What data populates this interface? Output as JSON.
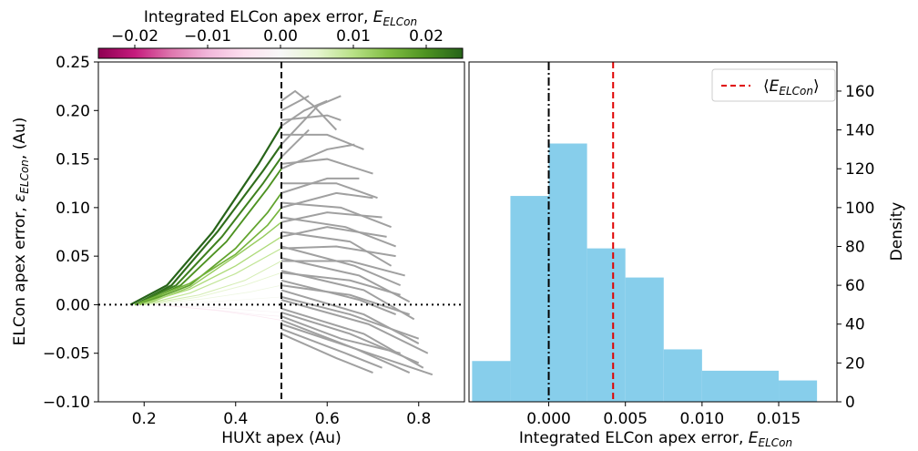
{
  "colorbar": {
    "label_main": "Integrated ELCon apex error, ",
    "label_symbol": "E",
    "label_sub": "ELCon",
    "min": -0.025,
    "max": 0.025,
    "ticks": [
      "−0.02",
      "−0.01",
      "0.00",
      "0.01",
      "0.02"
    ],
    "tick_values": [
      -0.02,
      -0.01,
      0.0,
      0.01,
      0.02
    ],
    "colormap": "PiYG",
    "stops": [
      "#8e0152",
      "#c51b7d",
      "#de77ae",
      "#f1b6da",
      "#fde0ef",
      "#f7f7f7",
      "#e6f5d0",
      "#b8e186",
      "#7fbc41",
      "#4d9221",
      "#276419"
    ]
  },
  "chart_data": [
    {
      "type": "line",
      "panel": "left",
      "xlabel": "HUXt apex (Au)",
      "ylabel_main": "ELCon apex error, ",
      "ylabel_symbol": "ε",
      "ylabel_sub": "ELCon",
      "ylabel_tail": ", (Au)",
      "xlim": [
        0.1,
        0.9
      ],
      "ylim": [
        -0.1,
        0.25
      ],
      "xticks": [
        0.2,
        0.4,
        0.6,
        0.8
      ],
      "xtick_labels": [
        "0.2",
        "0.4",
        "0.6",
        "0.8"
      ],
      "yticks": [
        -0.1,
        -0.05,
        0.0,
        0.05,
        0.1,
        0.15,
        0.2,
        0.25
      ],
      "ytick_labels": [
        "−0.10",
        "−0.05",
        "0.00",
        "0.05",
        "0.10",
        "0.15",
        "0.20",
        "0.25"
      ],
      "reference_lines": [
        {
          "orientation": "vertical",
          "x": 0.5,
          "style": "dashed",
          "color": "#000000"
        },
        {
          "orientation": "horizontal",
          "y": 0.0,
          "style": "dotted",
          "color": "#000000"
        }
      ],
      "integrated_segment_xrange": [
        0.15,
        0.5
      ],
      "after_apex_color": "#a0a0a0",
      "series": [
        {
          "integrated_error": 0.025,
          "values": [
            [
              0.17,
              0.0
            ],
            [
              0.25,
              0.02
            ],
            [
              0.35,
              0.075
            ],
            [
              0.45,
              0.145
            ],
            [
              0.5,
              0.184
            ],
            [
              0.55,
              0.2
            ],
            [
              0.6,
              0.21
            ]
          ]
        },
        {
          "integrated_error": 0.024,
          "values": [
            [
              0.18,
              0.0
            ],
            [
              0.26,
              0.02
            ],
            [
              0.36,
              0.075
            ],
            [
              0.46,
              0.138
            ],
            [
              0.5,
              0.165
            ],
            [
              0.58,
              0.205
            ],
            [
              0.63,
              0.215
            ]
          ]
        },
        {
          "integrated_error": 0.022,
          "values": [
            [
              0.18,
              0.0
            ],
            [
              0.27,
              0.02
            ],
            [
              0.37,
              0.07
            ],
            [
              0.46,
              0.125
            ],
            [
              0.5,
              0.152
            ],
            [
              0.56,
              0.18
            ]
          ]
        },
        {
          "integrated_error": 0.02,
          "values": [
            [
              0.19,
              0.0
            ],
            [
              0.28,
              0.02
            ],
            [
              0.38,
              0.065
            ],
            [
              0.47,
              0.12
            ],
            [
              0.5,
              0.14
            ],
            [
              0.6,
              0.16
            ],
            [
              0.66,
              0.165
            ]
          ]
        },
        {
          "integrated_error": 0.018,
          "values": [
            [
              0.19,
              0.0
            ],
            [
              0.3,
              0.02
            ],
            [
              0.4,
              0.058
            ],
            [
              0.47,
              0.095
            ],
            [
              0.5,
              0.115
            ],
            [
              0.6,
              0.13
            ],
            [
              0.67,
              0.13
            ]
          ]
        },
        {
          "integrated_error": 0.016,
          "values": [
            [
              0.18,
              0.0
            ],
            [
              0.3,
              0.022
            ],
            [
              0.4,
              0.052
            ],
            [
              0.47,
              0.082
            ],
            [
              0.5,
              0.1
            ],
            [
              0.62,
              0.115
            ],
            [
              0.7,
              0.11
            ]
          ]
        },
        {
          "integrated_error": 0.013,
          "values": [
            [
              0.2,
              0.0
            ],
            [
              0.3,
              0.018
            ],
            [
              0.4,
              0.05
            ],
            [
              0.46,
              0.07
            ],
            [
              0.5,
              0.085
            ],
            [
              0.6,
              0.095
            ],
            [
              0.72,
              0.09
            ]
          ]
        },
        {
          "integrated_error": 0.011,
          "values": [
            [
              0.19,
              0.0
            ],
            [
              0.3,
              0.016
            ],
            [
              0.4,
              0.04
            ],
            [
              0.5,
              0.07
            ],
            [
              0.6,
              0.08
            ],
            [
              0.73,
              0.07
            ]
          ]
        },
        {
          "integrated_error": 0.009,
          "values": [
            [
              0.2,
              0.0
            ],
            [
              0.3,
              0.012
            ],
            [
              0.4,
              0.032
            ],
            [
              0.5,
              0.058
            ],
            [
              0.62,
              0.06
            ],
            [
              0.75,
              0.05
            ]
          ]
        },
        {
          "integrated_error": 0.007,
          "values": [
            [
              0.2,
              0.0
            ],
            [
              0.32,
              0.01
            ],
            [
              0.42,
              0.025
            ],
            [
              0.5,
              0.045
            ],
            [
              0.65,
              0.045
            ],
            [
              0.77,
              0.03
            ]
          ]
        },
        {
          "integrated_error": 0.005,
          "values": [
            [
              0.21,
              0.0
            ],
            [
              0.32,
              0.008
            ],
            [
              0.42,
              0.02
            ],
            [
              0.5,
              0.033
            ],
            [
              0.65,
              0.025
            ],
            [
              0.76,
              0.01
            ]
          ]
        },
        {
          "integrated_error": 0.003,
          "values": [
            [
              0.21,
              0.0
            ],
            [
              0.33,
              0.006
            ],
            [
              0.43,
              0.013
            ],
            [
              0.5,
              0.02
            ],
            [
              0.65,
              0.01
            ],
            [
              0.78,
              -0.01
            ]
          ]
        },
        {
          "integrated_error": 0.001,
          "values": [
            [
              0.22,
              0.0
            ],
            [
              0.35,
              0.003
            ],
            [
              0.44,
              0.006
            ],
            [
              0.5,
              0.008
            ],
            [
              0.65,
              -0.01
            ],
            [
              0.8,
              -0.035
            ]
          ]
        },
        {
          "integrated_error": -0.001,
          "values": [
            [
              0.22,
              0.0
            ],
            [
              0.35,
              -0.003
            ],
            [
              0.44,
              -0.006
            ],
            [
              0.5,
              -0.008
            ],
            [
              0.65,
              -0.03
            ],
            [
              0.8,
              -0.06
            ]
          ]
        },
        {
          "integrated_error": -0.002,
          "values": [
            [
              0.22,
              0.0
            ],
            [
              0.35,
              -0.005
            ],
            [
              0.44,
              -0.01
            ],
            [
              0.5,
              -0.012
            ],
            [
              0.63,
              -0.035
            ],
            [
              0.76,
              -0.05
            ]
          ]
        },
        {
          "integrated_error": -0.003,
          "values": [
            [
              0.23,
              0.0
            ],
            [
              0.36,
              -0.006
            ],
            [
              0.45,
              -0.012
            ],
            [
              0.5,
              -0.016
            ],
            [
              0.66,
              -0.045
            ],
            [
              0.83,
              -0.072
            ]
          ]
        },
        {
          "integrated_error": null,
          "values": [
            [
              0.5,
              0.21
            ],
            [
              0.53,
              0.22
            ],
            [
              0.57,
              0.205
            ],
            [
              0.62,
              0.18
            ]
          ]
        },
        {
          "integrated_error": null,
          "values": [
            [
              0.5,
              0.2
            ],
            [
              0.56,
              0.215
            ]
          ]
        },
        {
          "integrated_error": null,
          "values": [
            [
              0.5,
              0.19
            ],
            [
              0.6,
              0.195
            ],
            [
              0.63,
              0.19
            ]
          ]
        },
        {
          "integrated_error": null,
          "values": [
            [
              0.5,
              0.175
            ],
            [
              0.6,
              0.175
            ],
            [
              0.68,
              0.16
            ]
          ]
        },
        {
          "integrated_error": null,
          "values": [
            [
              0.5,
              0.145
            ],
            [
              0.6,
              0.15
            ],
            [
              0.7,
              0.135
            ]
          ]
        },
        {
          "integrated_error": null,
          "values": [
            [
              0.5,
              0.125
            ],
            [
              0.62,
              0.125
            ],
            [
              0.71,
              0.11
            ]
          ]
        },
        {
          "integrated_error": null,
          "values": [
            [
              0.5,
              0.105
            ],
            [
              0.63,
              0.1
            ],
            [
              0.74,
              0.08
            ]
          ]
        },
        {
          "integrated_error": null,
          "values": [
            [
              0.5,
              0.09
            ],
            [
              0.64,
              0.08
            ],
            [
              0.75,
              0.06
            ]
          ]
        },
        {
          "integrated_error": null,
          "values": [
            [
              0.5,
              0.075
            ],
            [
              0.65,
              0.065
            ],
            [
              0.74,
              0.04
            ]
          ]
        },
        {
          "integrated_error": null,
          "values": [
            [
              0.5,
              0.06
            ],
            [
              0.66,
              0.04
            ],
            [
              0.76,
              0.02
            ]
          ]
        },
        {
          "integrated_error": null,
          "values": [
            [
              0.5,
              0.048
            ],
            [
              0.67,
              0.03
            ],
            [
              0.78,
              0.003
            ]
          ]
        },
        {
          "integrated_error": null,
          "values": [
            [
              0.5,
              0.035
            ],
            [
              0.68,
              0.015
            ],
            [
              0.79,
              -0.015
            ]
          ]
        },
        {
          "integrated_error": null,
          "values": [
            [
              0.5,
              0.025
            ],
            [
              0.67,
              0.005
            ],
            [
              0.75,
              -0.01
            ]
          ]
        },
        {
          "integrated_error": null,
          "values": [
            [
              0.5,
              0.015
            ],
            [
              0.68,
              -0.01
            ],
            [
              0.8,
              -0.04
            ]
          ]
        },
        {
          "integrated_error": null,
          "values": [
            [
              0.5,
              0.005
            ],
            [
              0.69,
              -0.02
            ],
            [
              0.82,
              -0.05
            ]
          ]
        },
        {
          "integrated_error": null,
          "values": [
            [
              0.5,
              -0.004
            ],
            [
              0.68,
              -0.03
            ],
            [
              0.81,
              -0.065
            ]
          ]
        },
        {
          "integrated_error": null,
          "values": [
            [
              0.5,
              -0.02
            ],
            [
              0.66,
              -0.045
            ],
            [
              0.78,
              -0.07
            ]
          ]
        },
        {
          "integrated_error": null,
          "values": [
            [
              0.5,
              -0.025
            ],
            [
              0.64,
              -0.05
            ],
            [
              0.72,
              -0.065
            ]
          ]
        },
        {
          "integrated_error": null,
          "values": [
            [
              0.5,
              -0.03
            ],
            [
              0.62,
              -0.055
            ],
            [
              0.7,
              -0.07
            ]
          ]
        }
      ]
    },
    {
      "type": "bar",
      "panel": "right",
      "subtype": "histogram",
      "xlabel_main": "Integrated ELCon apex error, ",
      "xlabel_symbol": "E",
      "xlabel_sub": "ELCon",
      "ylabel": "Density",
      "yaxis_side": "right",
      "xlim": [
        -0.0052,
        0.0188
      ],
      "ylim": [
        0,
        175
      ],
      "xticks": [
        0.0,
        0.005,
        0.01,
        0.015
      ],
      "xtick_labels": [
        "0.000",
        "0.005",
        "0.010",
        "0.015"
      ],
      "yticks": [
        0,
        20,
        40,
        60,
        80,
        100,
        120,
        140,
        160
      ],
      "ytick_labels": [
        "0",
        "20",
        "40",
        "60",
        "80",
        "100",
        "120",
        "140",
        "160"
      ],
      "bar_color": "#87ceeb",
      "bins": [
        {
          "x0": -0.005,
          "x1": -0.0025,
          "value": 21
        },
        {
          "x0": -0.0025,
          "x1": 0.0,
          "value": 106
        },
        {
          "x0": 0.0,
          "x1": 0.0025,
          "value": 133
        },
        {
          "x0": 0.0025,
          "x1": 0.005,
          "value": 79
        },
        {
          "x0": 0.005,
          "x1": 0.0075,
          "value": 64
        },
        {
          "x0": 0.0075,
          "x1": 0.01,
          "value": 27
        },
        {
          "x0": 0.01,
          "x1": 0.015,
          "value": 16
        },
        {
          "x0": 0.015,
          "x1": 0.0175,
          "value": 11
        }
      ],
      "reference_lines": [
        {
          "orientation": "vertical",
          "x": 0.0,
          "style": "dashdot",
          "color": "#000000"
        },
        {
          "orientation": "vertical",
          "x": 0.0042,
          "style": "dashed",
          "color": "#e00000",
          "legend": true
        }
      ],
      "legend": {
        "position": "top-right",
        "entry_bracket_left": "⟨",
        "entry_symbol": "E",
        "entry_sub": "ELCon",
        "entry_bracket_right": "⟩",
        "line_color": "#e00000"
      }
    }
  ]
}
